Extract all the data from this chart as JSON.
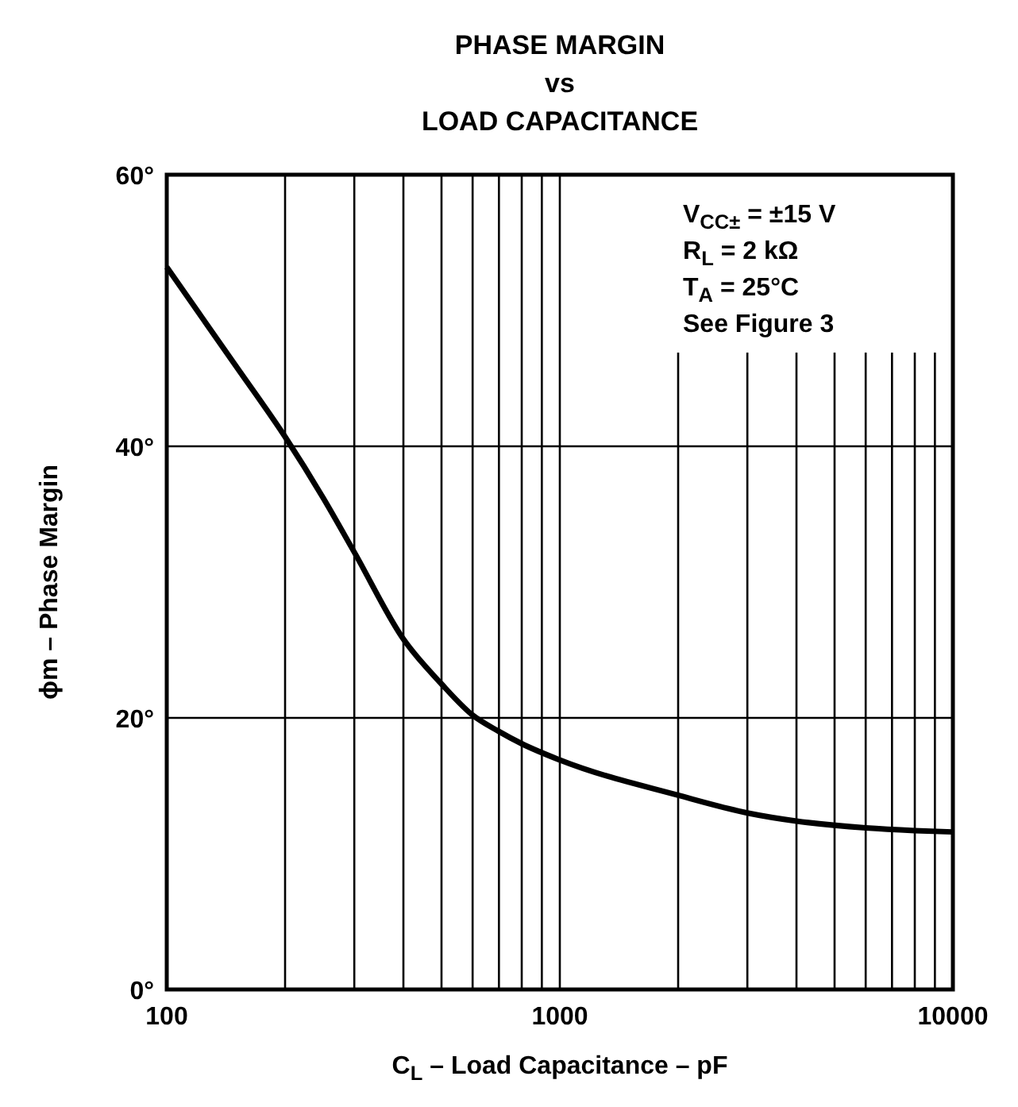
{
  "chart_data": {
    "type": "line",
    "title": "PHASE MARGIN\nvs\nLOAD CAPACITANCE",
    "xlabel": "C$_{L}$ – Load Capacitance – pF",
    "ylabel": "ϕm – Phase Margin",
    "annotations": [
      "V$_{CC±}$ = ±15 V",
      "R$_{L}$ = 2 kΩ",
      "T$_{A}$ = 25°C",
      "See Figure 3"
    ],
    "log": "x",
    "grid": true,
    "marker": "none",
    "line_style": "solid",
    "xlim": [
      100,
      10000
    ],
    "ylim": [
      0,
      60
    ],
    "xticks": [
      100,
      {
        "value": 200,
        "label": null
      },
      {
        "value": 300,
        "label": null
      },
      {
        "value": 400,
        "label": null
      },
      {
        "value": 500,
        "label": null
      },
      {
        "value": 600,
        "label": null
      },
      {
        "value": 700,
        "label": null
      },
      {
        "value": 800,
        "label": null
      },
      {
        "value": 900,
        "label": null
      },
      1000,
      {
        "value": 2000,
        "label": null
      },
      {
        "value": 3000,
        "label": null
      },
      {
        "value": 4000,
        "label": null
      },
      {
        "value": 5000,
        "label": null
      },
      {
        "value": 6000,
        "label": null
      },
      {
        "value": 7000,
        "label": null
      },
      {
        "value": 8000,
        "label": null
      },
      {
        "value": 9000,
        "label": null
      },
      10000
    ],
    "yticks": [
      {
        "value": 0,
        "label": "0°"
      },
      {
        "value": 20,
        "label": "20°"
      },
      {
        "value": 40,
        "label": "40°"
      },
      {
        "value": 60,
        "label": "60°"
      }
    ],
    "series": [
      {
        "color": "#000000",
        "x": [
          100,
          150,
          200,
          250,
          300,
          400,
          500,
          600,
          700,
          800,
          1000,
          2000,
          3000,
          4000,
          6000,
          8000,
          10000
        ],
        "values": [
          53.2,
          45.9,
          40.7,
          36.2,
          32.2,
          25.8,
          22.5,
          20.2,
          19.0,
          18.1,
          16.9,
          14.3,
          13.0,
          12.4,
          11.9,
          11.7,
          11.6
        ]
      }
    ]
  }
}
